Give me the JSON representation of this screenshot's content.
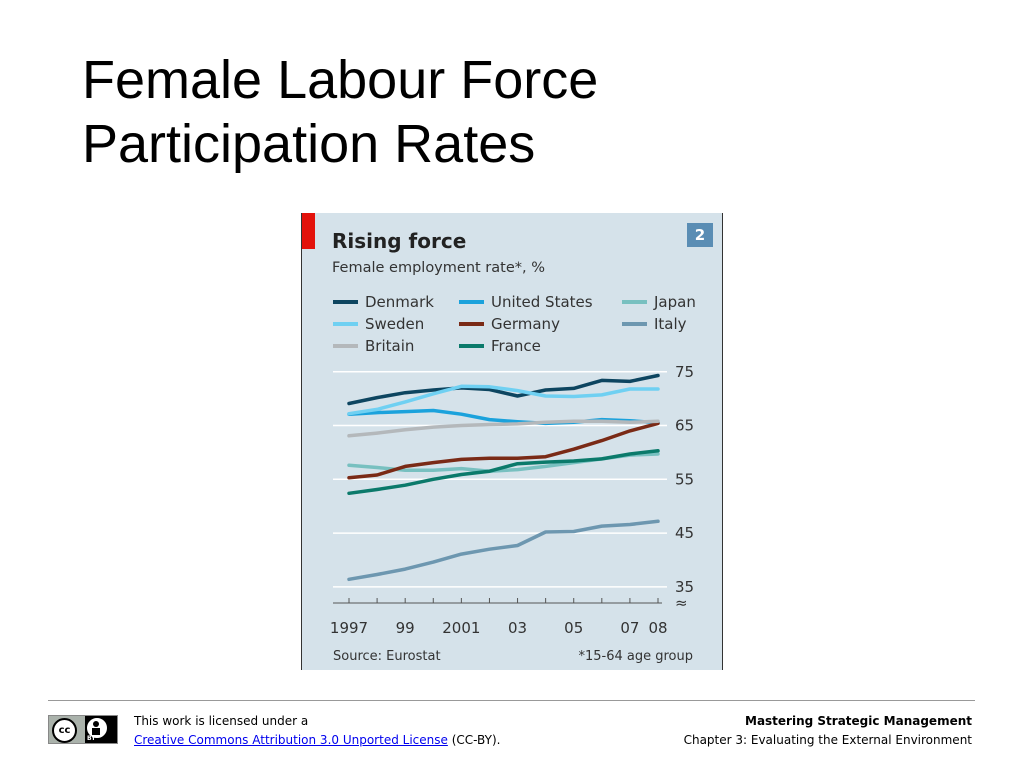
{
  "slide": {
    "title_line1": "Female Labour Force",
    "title_line2": "Participation Rates"
  },
  "chart_data": {
    "type": "line",
    "title": "Rising force",
    "subtitle": "Female employment rate*, %",
    "chart_number": "2",
    "x": [
      1997,
      1998,
      1999,
      2000,
      2001,
      2002,
      2003,
      2004,
      2005,
      2006,
      2007,
      2008
    ],
    "x_tick_labels": [
      "1997",
      "99",
      "2001",
      "03",
      "05",
      "07",
      "08"
    ],
    "x_tick_values": [
      1997,
      1999,
      2001,
      2003,
      2005,
      2007,
      2008
    ],
    "y_ticks": [
      35,
      45,
      55,
      65,
      75
    ],
    "ylim": [
      32,
      77
    ],
    "axis_break_marker": "≈",
    "source": "Source: Eurostat",
    "footnote": "*15-64 age group",
    "series": [
      {
        "name": "Denmark",
        "color": "#0d4560",
        "values": [
          69.1,
          70.2,
          71.1,
          71.6,
          72.0,
          71.7,
          70.5,
          71.6,
          71.9,
          73.4,
          73.2,
          74.3
        ]
      },
      {
        "name": "United States",
        "color": "#1ba2dc",
        "values": [
          67.1,
          67.4,
          67.6,
          67.8,
          67.1,
          66.1,
          65.7,
          65.4,
          65.6,
          66.1,
          65.9,
          65.5
        ]
      },
      {
        "name": "Japan",
        "color": "#78c0c0",
        "values": [
          57.6,
          57.2,
          56.7,
          56.7,
          57.0,
          56.5,
          56.8,
          57.4,
          58.1,
          58.8,
          59.5,
          59.7
        ]
      },
      {
        "name": "Sweden",
        "color": "#6fd0f2",
        "values": [
          67.2,
          68.0,
          69.4,
          70.9,
          72.3,
          72.2,
          71.5,
          70.5,
          70.4,
          70.7,
          71.8,
          71.8
        ]
      },
      {
        "name": "Germany",
        "color": "#7a2a16",
        "values": [
          55.3,
          55.8,
          57.4,
          58.1,
          58.7,
          58.9,
          58.9,
          59.2,
          60.6,
          62.2,
          64.0,
          65.4
        ]
      },
      {
        "name": "Italy",
        "color": "#6d97b0",
        "values": [
          36.4,
          37.3,
          38.3,
          39.6,
          41.1,
          42.0,
          42.7,
          45.2,
          45.3,
          46.3,
          46.6,
          47.2
        ]
      },
      {
        "name": "Britain",
        "color": "#b4b8bb",
        "values": [
          63.1,
          63.6,
          64.2,
          64.7,
          65.0,
          65.2,
          65.3,
          65.6,
          65.8,
          65.8,
          65.6,
          65.8
        ]
      },
      {
        "name": "France",
        "color": "#0b7a6b",
        "values": [
          52.4,
          53.1,
          53.9,
          55.0,
          55.9,
          56.5,
          57.9,
          58.2,
          58.4,
          58.8,
          59.7,
          60.3
        ]
      }
    ],
    "legend_placement": "top",
    "grid": "horizontal"
  },
  "footer": {
    "license_line1": "This work is licensed under a",
    "license_link": "Creative Commons Attribution 3.0 Unported License",
    "license_suffix": " (CC-BY).",
    "cc_mark": "cc",
    "by_mark": "BY",
    "book_title": "Mastering Strategic Management",
    "chapter": "Chapter 3: Evaluating the External Environment"
  }
}
